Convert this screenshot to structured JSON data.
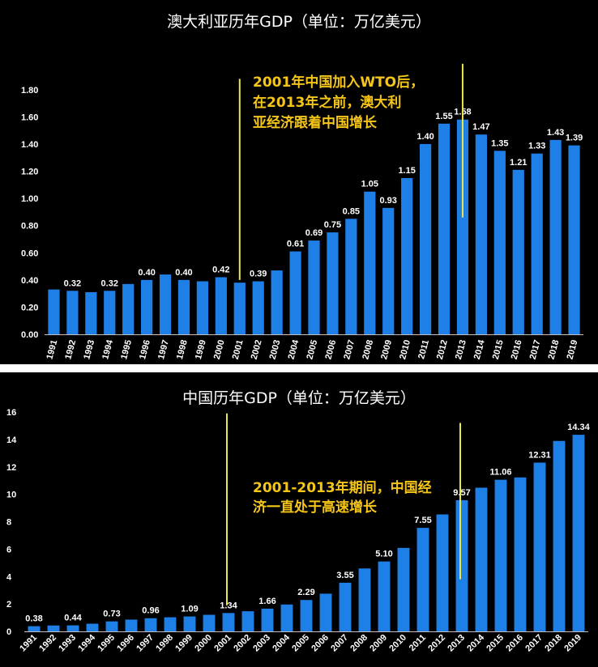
{
  "colors": {
    "background": "#000000",
    "bar": "#1e7fe6",
    "marker": "#e8e84a",
    "annotation": "#f5c518",
    "text": "#ffffff"
  },
  "chart_data": [
    {
      "type": "bar",
      "title": "澳大利亚历年GDP（单位：万亿美元）",
      "categories": [
        "1991",
        "1992",
        "1993",
        "1994",
        "1995",
        "1996",
        "1997",
        "1998",
        "1999",
        "2000",
        "2001",
        "2002",
        "2003",
        "2004",
        "2005",
        "2006",
        "2007",
        "2008",
        "2009",
        "2010",
        "2011",
        "2012",
        "2013",
        "2014",
        "2015",
        "2016",
        "2017",
        "2018",
        "2019"
      ],
      "values": [
        0.33,
        0.32,
        0.31,
        0.32,
        0.37,
        0.4,
        0.44,
        0.4,
        0.39,
        0.42,
        0.38,
        0.39,
        0.47,
        0.61,
        0.69,
        0.75,
        0.85,
        1.05,
        0.93,
        1.15,
        1.4,
        1.55,
        1.58,
        1.47,
        1.35,
        1.21,
        1.33,
        1.43,
        1.39
      ],
      "data_labels": [
        "",
        "0.32",
        "",
        "0.32",
        "",
        "0.40",
        "",
        "0.40",
        "",
        "0.42",
        "",
        "0.39",
        "",
        "0.61",
        "0.69",
        "0.75",
        "0.85",
        "1.05",
        "0.93",
        "1.15",
        "1.40",
        "1.55",
        "1.58",
        "1.47",
        "1.35",
        "1.21",
        "1.33",
        "1.43",
        "1.39"
      ],
      "yticks": [
        "0.00",
        "0.20",
        "0.40",
        "0.60",
        "0.80",
        "1.00",
        "1.20",
        "1.40",
        "1.60",
        "1.80"
      ],
      "ylim": [
        0,
        1.9
      ],
      "marker_lines": [
        {
          "category": "2001",
          "from": 0.4,
          "to": 1.88
        },
        {
          "category": "2013",
          "from": 0.86,
          "to": 1.99
        }
      ],
      "annotation": [
        "2001年中国加入WTO后，",
        "在2013年之前，澳大利",
        "亚经济跟着中国增长"
      ]
    },
    {
      "type": "bar",
      "title": "中国历年GDP（单位：万亿美元）",
      "categories": [
        "1991",
        "1992",
        "1993",
        "1994",
        "1995",
        "1996",
        "1997",
        "1998",
        "1999",
        "2000",
        "2001",
        "2002",
        "2003",
        "2004",
        "2005",
        "2006",
        "2007",
        "2008",
        "2009",
        "2010",
        "2011",
        "2012",
        "2013",
        "2014",
        "2015",
        "2016",
        "2017",
        "2018",
        "2019"
      ],
      "values": [
        0.38,
        0.43,
        0.44,
        0.56,
        0.73,
        0.86,
        0.96,
        1.03,
        1.09,
        1.21,
        1.34,
        1.47,
        1.66,
        1.96,
        2.29,
        2.75,
        3.55,
        4.59,
        5.1,
        6.09,
        7.55,
        8.53,
        9.57,
        10.48,
        11.06,
        11.23,
        12.31,
        13.89,
        14.34
      ],
      "data_labels": [
        "0.38",
        "",
        "0.44",
        "",
        "0.73",
        "",
        "0.96",
        "",
        "1.09",
        "",
        "1.34",
        "",
        "1.66",
        "",
        "2.29",
        "",
        "3.55",
        "",
        "5.10",
        "",
        "7.55",
        "",
        "9.57",
        "",
        "11.06",
        "",
        "12.31",
        "",
        "14.34"
      ],
      "yticks": [
        "0",
        "2",
        "4",
        "6",
        "8",
        "10",
        "12",
        "14",
        "16"
      ],
      "ylim": [
        0,
        16
      ],
      "marker_lines": [
        {
          "category": "2001",
          "from": 1.9,
          "to": 15.9
        },
        {
          "category": "2013",
          "from": 3.8,
          "to": 15.2
        }
      ],
      "annotation": [
        "2001-2013年期间，中国经",
        "济一直处于高速增长"
      ]
    }
  ]
}
